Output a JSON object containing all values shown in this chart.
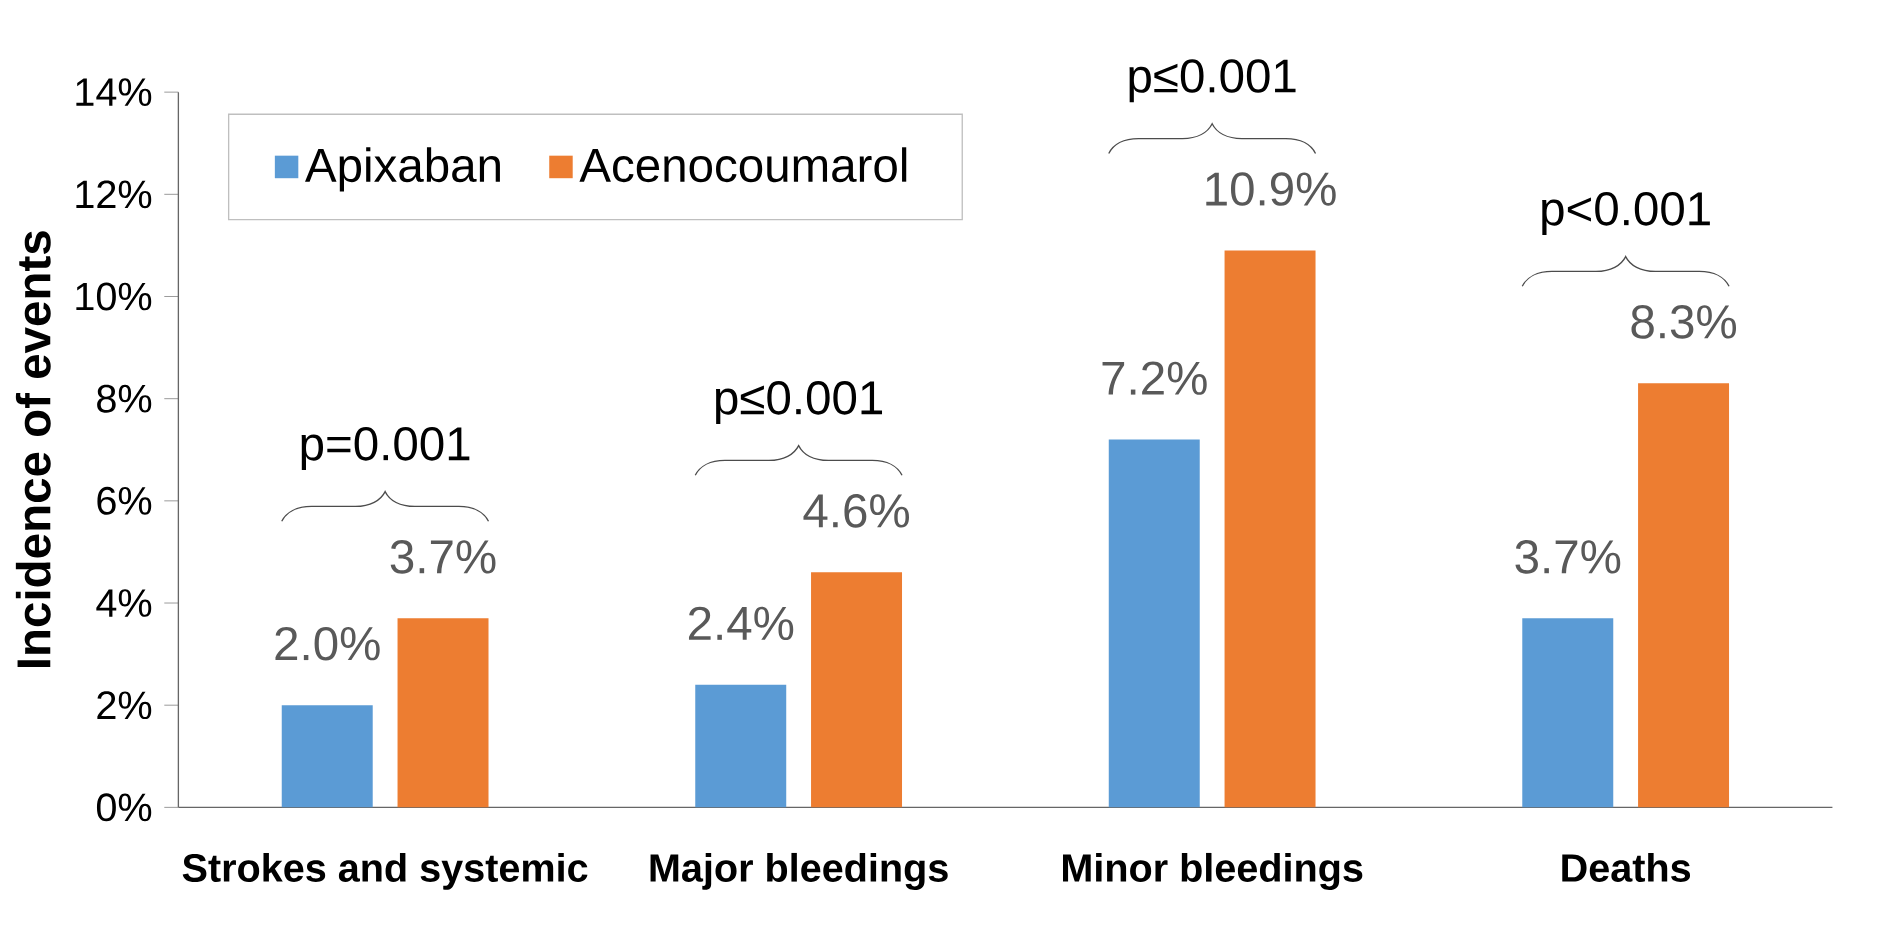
{
  "chart_data": {
    "type": "bar",
    "ylabel": "Incidence of events",
    "categories": [
      "Strokes and systemic",
      "Major bleedings",
      "Minor bleedings",
      "Deaths"
    ],
    "series": [
      {
        "name": "Apixaban",
        "color": "#5b9bd5",
        "values": [
          2.0,
          2.4,
          7.2,
          3.7
        ],
        "value_labels": [
          "2.0%",
          "2.4%",
          "7.2%",
          "3.7%"
        ]
      },
      {
        "name": "Acenocoumarol",
        "color": "#ed7d31",
        "values": [
          3.7,
          4.6,
          10.9,
          8.3
        ],
        "value_labels": [
          "3.7%",
          "4.6%",
          "10.9%",
          "8.3%"
        ]
      }
    ],
    "ylim": [
      0,
      14
    ],
    "yticks": [
      {
        "value": 0,
        "label": "0%"
      },
      {
        "value": 2,
        "label": "2%"
      },
      {
        "value": 4,
        "label": "4%"
      },
      {
        "value": 6,
        "label": "6%"
      },
      {
        "value": 8,
        "label": "8%"
      },
      {
        "value": 10,
        "label": "10%"
      },
      {
        "value": 12,
        "label": "12%"
      },
      {
        "value": 14,
        "label": "14%"
      }
    ],
    "annotations": [
      "p=0.001",
      "p≤0.001",
      "p≤0.001",
      "p<0.001"
    ],
    "legend": "top left",
    "grid": false
  }
}
